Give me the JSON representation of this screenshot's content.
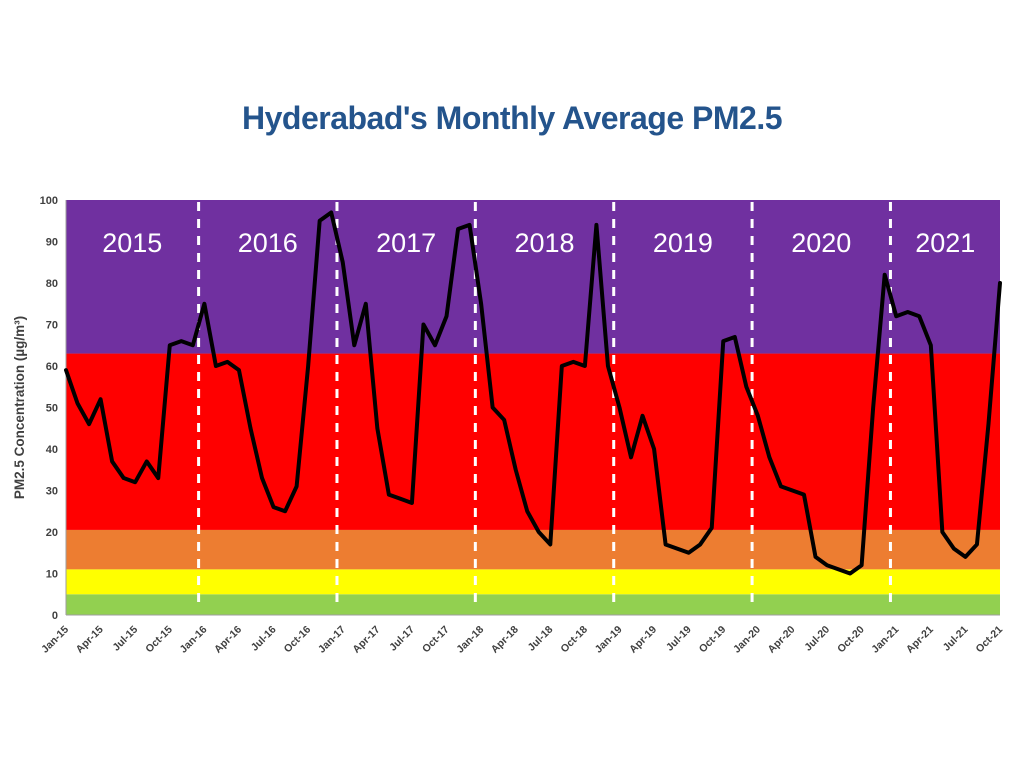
{
  "title": "Hyderabad's Monthly Average PM2.5",
  "title_color": "#24548C",
  "chart_data": {
    "type": "line",
    "title": "Hyderabad's Monthly Average PM2.5",
    "ylabel": "PM2.5 Concentration (µg/m³)",
    "ylim": [
      0,
      100
    ],
    "y_ticks": [
      0,
      10,
      20,
      30,
      40,
      50,
      60,
      70,
      80,
      90,
      100
    ],
    "x_tick_every": 3,
    "grid": false,
    "legend": "none",
    "line_color": "#000000",
    "line_width": 4,
    "axis_text_color": "#404040",
    "x": [
      "Jan-15",
      "Feb-15",
      "Mar-15",
      "Apr-15",
      "May-15",
      "Jun-15",
      "Jul-15",
      "Aug-15",
      "Sep-15",
      "Oct-15",
      "Nov-15",
      "Dec-15",
      "Jan-16",
      "Feb-16",
      "Mar-16",
      "Apr-16",
      "May-16",
      "Jun-16",
      "Jul-16",
      "Aug-16",
      "Sep-16",
      "Oct-16",
      "Nov-16",
      "Dec-16",
      "Jan-17",
      "Feb-17",
      "Mar-17",
      "Apr-17",
      "May-17",
      "Jun-17",
      "Jul-17",
      "Aug-17",
      "Sep-17",
      "Oct-17",
      "Nov-17",
      "Dec-17",
      "Jan-18",
      "Feb-18",
      "Mar-18",
      "Apr-18",
      "May-18",
      "Jun-18",
      "Jul-18",
      "Aug-18",
      "Sep-18",
      "Oct-18",
      "Nov-18",
      "Dec-18",
      "Jan-19",
      "Feb-19",
      "Mar-19",
      "Apr-19",
      "May-19",
      "Jun-19",
      "Jul-19",
      "Aug-19",
      "Sep-19",
      "Oct-19",
      "Nov-19",
      "Dec-19",
      "Jan-20",
      "Feb-20",
      "Mar-20",
      "Apr-20",
      "May-20",
      "Jun-20",
      "Jul-20",
      "Aug-20",
      "Sep-20",
      "Oct-20",
      "Nov-20",
      "Dec-20",
      "Jan-21",
      "Feb-21",
      "Mar-21",
      "Apr-21",
      "May-21",
      "Jun-21",
      "Jul-21",
      "Aug-21",
      "Sep-21",
      "Oct-21"
    ],
    "values": [
      59,
      51,
      46,
      52,
      37,
      33,
      32,
      37,
      33,
      65,
      66,
      65,
      75,
      60,
      61,
      59,
      45,
      33,
      26,
      25,
      31,
      60,
      95,
      97,
      85,
      65,
      75,
      45,
      29,
      28,
      27,
      70,
      65,
      72,
      93,
      94,
      75,
      50,
      47,
      35,
      25,
      20,
      17,
      60,
      61,
      60,
      94,
      60,
      50,
      38,
      48,
      40,
      17,
      16,
      15,
      17,
      21,
      66,
      67,
      55,
      48,
      38,
      31,
      30,
      29,
      14,
      12,
      11,
      10,
      12,
      50,
      82,
      72,
      73,
      72,
      65,
      20,
      16,
      14,
      17,
      46,
      80
    ],
    "series_name": "Monthly average PM2.5 (µg/m³)",
    "year_annotations": [
      "2015",
      "2016",
      "2017",
      "2018",
      "2019",
      "2020",
      "2021"
    ],
    "year_label_color": "#FFFFFF",
    "year_divider_style": {
      "color": "#FFFFFF",
      "dash": "9 8",
      "width": 3
    },
    "bands": [
      {
        "label": "0-5",
        "from": 0,
        "to": 5,
        "color": "#92D050"
      },
      {
        "label": "5-11",
        "from": 5,
        "to": 11,
        "color": "#FFFF00"
      },
      {
        "label": "11-20",
        "from": 11,
        "to": 20.5,
        "color": "#ED7D31"
      },
      {
        "label": "20-63",
        "from": 20.5,
        "to": 63,
        "color": "#FF0000"
      },
      {
        "label": "63-100",
        "from": 63,
        "to": 100,
        "color": "#7030A0"
      }
    ]
  }
}
